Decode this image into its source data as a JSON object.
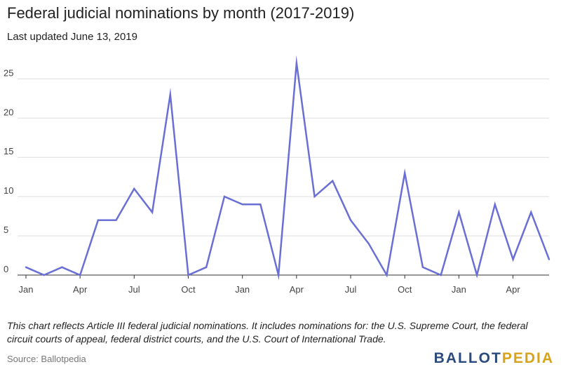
{
  "title": "Federal judicial nominations by month (2017-2019)",
  "subtitle": "Last updated June 13, 2019",
  "note": "This chart reflects Article III federal judicial nominations. It includes nominations for: the U.S. Supreme Court, the federal circuit courts of appeal, federal district courts, and the U.S. Court of International Trade.",
  "source": "Source: Ballotpedia",
  "logo": {
    "part1": "BALLOT",
    "part2": "PEDIA"
  },
  "colors": {
    "line": "#6a6fd6",
    "grid": "#dddddd",
    "axis": "#333333",
    "logo_blue": "#2b4a7e",
    "logo_gold": "#d9a21b"
  },
  "chart_data": {
    "type": "line",
    "title": "Federal judicial nominations by month (2017-2019)",
    "xlabel": "",
    "ylabel": "",
    "ylim": [
      0,
      27
    ],
    "yticks": [
      0,
      5,
      10,
      15,
      20,
      25
    ],
    "grid": true,
    "x": [
      "2017-01",
      "2017-02",
      "2017-03",
      "2017-04",
      "2017-05",
      "2017-06",
      "2017-07",
      "2017-08",
      "2017-09",
      "2017-10",
      "2017-11",
      "2017-12",
      "2018-01",
      "2018-02",
      "2018-03",
      "2018-04",
      "2018-05",
      "2018-06",
      "2018-07",
      "2018-08",
      "2018-09",
      "2018-10",
      "2018-11",
      "2018-12",
      "2019-01",
      "2019-02",
      "2019-03",
      "2019-04",
      "2019-05",
      "2019-06"
    ],
    "xtick_labels": [
      {
        "x": "2017-01",
        "label": "Jan"
      },
      {
        "x": "2017-04",
        "label": "Apr"
      },
      {
        "x": "2017-07",
        "label": "Jul"
      },
      {
        "x": "2017-10",
        "label": "Oct"
      },
      {
        "x": "2018-01",
        "label": "Jan"
      },
      {
        "x": "2018-04",
        "label": "Apr"
      },
      {
        "x": "2018-07",
        "label": "Jul"
      },
      {
        "x": "2018-10",
        "label": "Oct"
      },
      {
        "x": "2019-01",
        "label": "Jan"
      },
      {
        "x": "2019-04",
        "label": "Apr"
      }
    ],
    "series": [
      {
        "values": [
          1,
          0,
          1,
          0,
          7,
          7,
          11,
          8,
          23,
          0,
          1,
          10,
          9,
          9,
          0,
          27,
          10,
          12,
          7,
          4,
          0,
          13,
          1,
          0,
          8,
          0,
          9,
          2,
          8,
          2
        ]
      }
    ]
  }
}
